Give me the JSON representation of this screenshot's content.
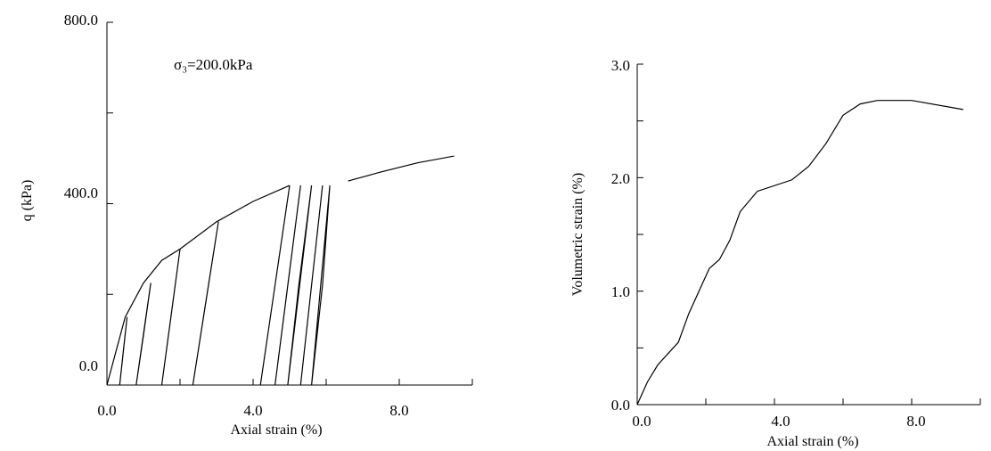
{
  "chart_data": [
    {
      "type": "line",
      "title": "",
      "annotation": "σ₃=200.0kPa",
      "xlabel": "Axial strain (%)",
      "ylabel": "q (kPa)",
      "xlim": [
        0,
        10
      ],
      "ylim": [
        0,
        800
      ],
      "x_ticks": [
        "0.0",
        "4.0",
        "8.0"
      ],
      "y_ticks": [
        "0.0",
        "400.0",
        "800.0"
      ],
      "series": [
        {
          "role": "backbone",
          "x": [
            0.0,
            0.5,
            1.0,
            1.5,
            2.0,
            3.0,
            4.0,
            5.0
          ],
          "y": [
            0,
            150,
            225,
            275,
            300,
            360,
            405,
            440
          ]
        },
        {
          "role": "post-cycling",
          "x": [
            6.6,
            7.5,
            8.5,
            9.5
          ],
          "y": [
            450,
            470,
            490,
            505
          ]
        },
        {
          "role": "loop",
          "x": [
            0.35,
            0.55,
            0.45,
            0.35
          ],
          "y": [
            0,
            150,
            75,
            0
          ]
        },
        {
          "role": "loop",
          "x": [
            0.8,
            1.2,
            1.0,
            0.8
          ],
          "y": [
            0,
            225,
            110,
            0
          ]
        },
        {
          "role": "loop",
          "x": [
            1.5,
            2.0,
            1.75,
            1.5
          ],
          "y": [
            0,
            300,
            150,
            0
          ]
        },
        {
          "role": "loop",
          "x": [
            2.35,
            3.05,
            2.7,
            2.35
          ],
          "y": [
            0,
            360,
            180,
            0
          ]
        },
        {
          "role": "loop",
          "x": [
            4.2,
            5.0,
            4.6,
            4.2
          ],
          "y": [
            0,
            440,
            220,
            0
          ]
        },
        {
          "role": "loop",
          "x": [
            4.6,
            5.3,
            4.95,
            4.6
          ],
          "y": [
            0,
            440,
            220,
            0
          ]
        },
        {
          "role": "loop",
          "x": [
            4.95,
            5.6,
            5.25,
            4.95
          ],
          "y": [
            0,
            440,
            220,
            0
          ]
        },
        {
          "role": "loop",
          "x": [
            5.3,
            5.9,
            5.6,
            5.3
          ],
          "y": [
            0,
            440,
            220,
            0
          ]
        },
        {
          "role": "loop",
          "x": [
            5.6,
            6.1,
            5.9,
            5.6
          ],
          "y": [
            0,
            440,
            220,
            0
          ]
        }
      ]
    },
    {
      "type": "line",
      "title": "",
      "xlabel": "Axial strain (%)",
      "ylabel": "Volumetric strain (%)",
      "xlim": [
        0,
        10
      ],
      "ylim": [
        0,
        3
      ],
      "x_ticks": [
        "0.0",
        "4.0",
        "8.0"
      ],
      "y_ticks": [
        "0.0",
        "1.0",
        "2.0",
        "3.0"
      ],
      "series": [
        {
          "role": "main",
          "x": [
            0.0,
            0.3,
            0.6,
            0.9,
            1.2,
            1.5,
            1.8,
            2.1,
            2.4,
            2.7,
            3.0,
            3.5,
            4.5,
            5.0,
            5.5,
            6.0,
            6.5,
            7.0,
            8.0,
            9.5
          ],
          "y": [
            0.0,
            0.2,
            0.35,
            0.45,
            0.55,
            0.8,
            1.0,
            1.2,
            1.28,
            1.45,
            1.7,
            1.88,
            1.98,
            2.1,
            2.3,
            2.55,
            2.65,
            2.68,
            2.68,
            2.6
          ]
        }
      ]
    }
  ]
}
